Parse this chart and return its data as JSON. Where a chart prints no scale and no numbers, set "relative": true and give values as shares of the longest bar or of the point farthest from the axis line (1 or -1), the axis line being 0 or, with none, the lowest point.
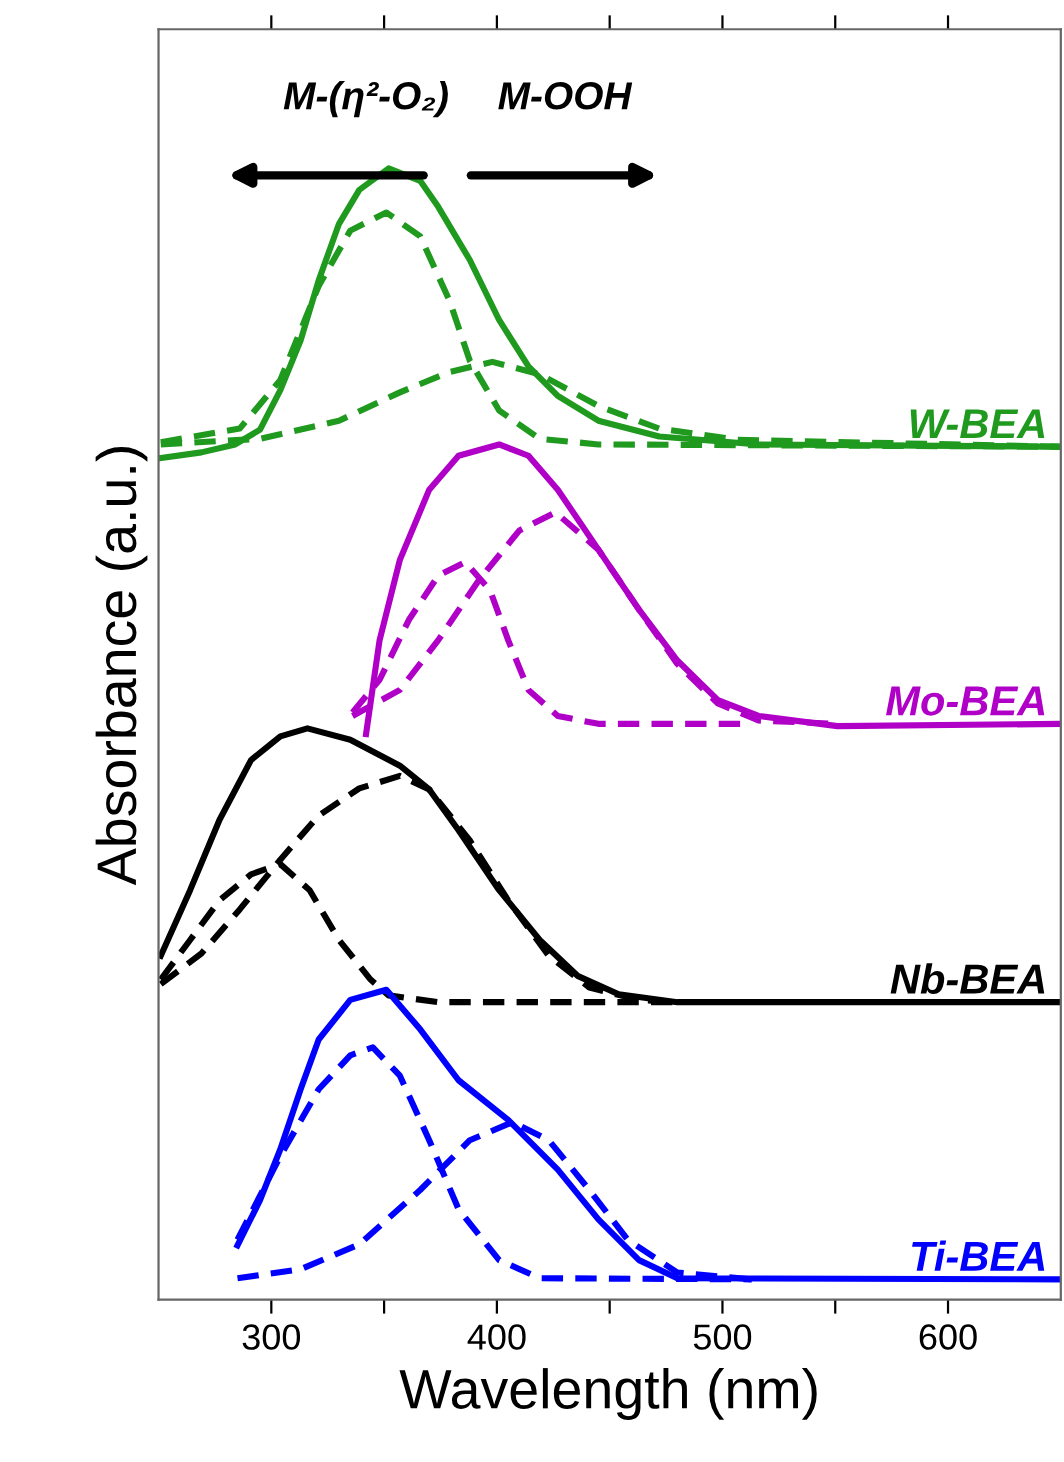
{
  "chart_data": {
    "type": "line",
    "relative": true,
    "xlabel": "Wavelength (nm)",
    "ylabel": "Absorbance (a.u.)",
    "xlim": [
      250,
      650
    ],
    "xticks": [
      300,
      {
        "value": 350,
        "label": null
      },
      400,
      {
        "value": 450,
        "label": null
      },
      500,
      {
        "value": 550,
        "label": null
      },
      600
    ],
    "grid": false,
    "legend": false,
    "marker": "none",
    "annotations": [
      "M-(η²-O₂)",
      "M-OOH"
    ],
    "series": [
      {
        "name": "W-BEA",
        "color": "#1f9a1f",
        "line_style": "solid",
        "x": [
          251,
          269,
          284,
          295,
          304,
          313,
          321,
          330,
          339,
          352,
          366,
          374,
          388,
          401,
          414,
          427,
          445,
          472,
          516,
          650
        ],
        "values": [
          0.744,
          0.749,
          0.756,
          0.769,
          0.804,
          0.848,
          0.901,
          0.951,
          0.981,
          1.0,
          0.989,
          0.966,
          0.919,
          0.866,
          0.825,
          0.799,
          0.777,
          0.763,
          0.756,
          0.754
        ]
      },
      {
        "color": "#1f9a1f",
        "line_style": "dashed",
        "x": [
          251,
          286,
          304,
          321,
          335,
          351,
          366,
          379,
          388,
          401,
          419,
          445,
          650
        ],
        "values": [
          0.758,
          0.77,
          0.813,
          0.896,
          0.945,
          0.961,
          0.94,
          0.883,
          0.83,
          0.786,
          0.761,
          0.756,
          0.754
        ]
      },
      {
        "color": "#1f9a1f",
        "line_style": "dashed",
        "x": [
          251,
          295,
          330,
          357,
          379,
          398,
          419,
          445,
          472,
          507,
          650
        ],
        "values": [
          0.756,
          0.761,
          0.777,
          0.802,
          0.82,
          0.829,
          0.818,
          0.79,
          0.77,
          0.76,
          0.754
        ]
      },
      {
        "name": "Mo-BEA",
        "color": "#b000c8",
        "line_style": "solid",
        "x": [
          342,
          348,
          357,
          370,
          383,
          401,
          414,
          427,
          445,
          463,
          480,
          498,
          516,
          551,
          650
        ],
        "values": [
          0.5,
          0.583,
          0.654,
          0.716,
          0.746,
          0.756,
          0.746,
          0.716,
          0.663,
          0.61,
          0.565,
          0.53,
          0.516,
          0.507,
          0.509
        ]
      },
      {
        "color": "#b000c8",
        "line_style": "dashed",
        "x": [
          336,
          348,
          361,
          374,
          386,
          397,
          405,
          414,
          427,
          445,
          513
        ],
        "values": [
          0.519,
          0.548,
          0.601,
          0.64,
          0.652,
          0.627,
          0.583,
          0.539,
          0.516,
          0.509,
          0.509
        ]
      },
      {
        "color": "#b000c8",
        "line_style": "dashed",
        "x": [
          336,
          357,
          374,
          392,
          410,
          426,
          445,
          463,
          480,
          498,
          516,
          551
        ],
        "values": [
          0.516,
          0.539,
          0.583,
          0.636,
          0.68,
          0.696,
          0.663,
          0.61,
          0.562,
          0.527,
          0.512,
          0.509
        ]
      },
      {
        "name": "Nb-BEA",
        "color": "#000000",
        "line_style": "solid",
        "x": [
          251,
          264,
          277,
          291,
          304,
          316,
          335,
          357,
          370,
          383,
          401,
          419,
          436,
          454,
          480,
          650
        ],
        "values": [
          0.304,
          0.362,
          0.424,
          0.477,
          0.498,
          0.505,
          0.495,
          0.472,
          0.451,
          0.415,
          0.362,
          0.318,
          0.286,
          0.27,
          0.263,
          0.263
        ]
      },
      {
        "color": "#000000",
        "line_style": "dashed",
        "x": [
          251,
          264,
          277,
          291,
          304,
          317,
          330,
          344,
          352,
          374,
          480
        ],
        "values": [
          0.283,
          0.318,
          0.353,
          0.376,
          0.385,
          0.362,
          0.318,
          0.283,
          0.269,
          0.263,
          0.263
        ]
      },
      {
        "color": "#000000",
        "line_style": "dashed",
        "x": [
          251,
          269,
          286,
          304,
          321,
          339,
          357,
          370,
          388,
          405,
          423,
          441,
          463,
          480
        ],
        "values": [
          0.279,
          0.306,
          0.345,
          0.389,
          0.428,
          0.452,
          0.463,
          0.451,
          0.406,
          0.353,
          0.304,
          0.276,
          0.265,
          0.263
        ]
      },
      {
        "name": "Ti-BEA",
        "color": "#0000ff",
        "line_style": "solid",
        "x": [
          285,
          295,
          304,
          313,
          321,
          335,
          351,
          366,
          383,
          405,
          427,
          445,
          463,
          480,
          650
        ],
        "values": [
          0.048,
          0.088,
          0.133,
          0.186,
          0.23,
          0.265,
          0.274,
          0.239,
          0.194,
          0.159,
          0.115,
          0.071,
          0.035,
          0.019,
          0.018
        ]
      },
      {
        "color": "#0000ff",
        "line_style": "dashed",
        "x": [
          285,
          304,
          321,
          335,
          345,
          357,
          370,
          383,
          401,
          419,
          513
        ],
        "values": [
          0.053,
          0.127,
          0.186,
          0.216,
          0.223,
          0.198,
          0.141,
          0.08,
          0.035,
          0.019,
          0.018
        ]
      },
      {
        "color": "#0000ff",
        "line_style": "dashed",
        "x": [
          285,
          313,
          339,
          366,
          388,
          407,
          423,
          441,
          458,
          480,
          513
        ],
        "values": [
          0.019,
          0.027,
          0.049,
          0.097,
          0.141,
          0.157,
          0.141,
          0.097,
          0.053,
          0.024,
          0.018
        ]
      }
    ]
  }
}
